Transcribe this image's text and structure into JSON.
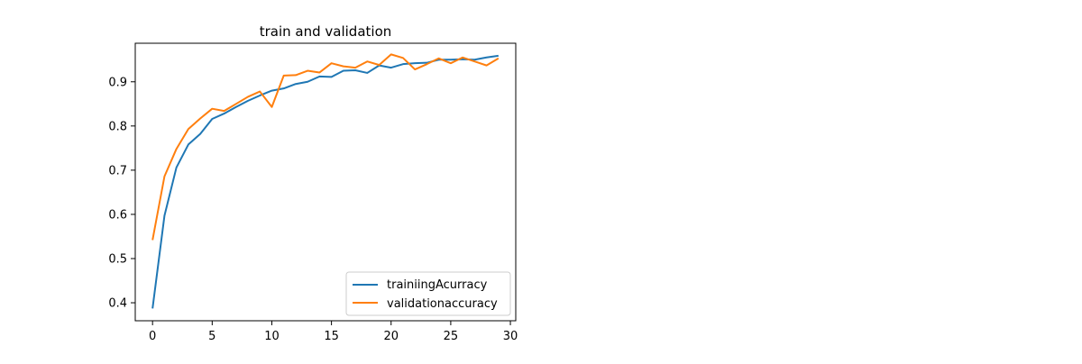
{
  "chart_data": {
    "type": "line",
    "title": "train and validation",
    "xlabel": "",
    "ylabel": "",
    "xlim": [
      -1.45,
      30.45
    ],
    "ylim": [
      0.3593,
      0.9872
    ],
    "xticks": [
      0,
      5,
      10,
      15,
      20,
      25,
      30
    ],
    "yticks": [
      0.4,
      0.5,
      0.6,
      0.7,
      0.8,
      0.9
    ],
    "xtick_labels": [
      "0",
      "5",
      "10",
      "15",
      "20",
      "25",
      "30"
    ],
    "ytick_labels": [
      "0.4",
      "0.5",
      "0.6",
      "0.7",
      "0.8",
      "0.9"
    ],
    "grid": false,
    "legend_position": "lower right",
    "x": [
      0,
      1,
      2,
      3,
      4,
      5,
      6,
      7,
      8,
      9,
      10,
      11,
      12,
      13,
      14,
      15,
      16,
      17,
      18,
      19,
      20,
      21,
      22,
      23,
      24,
      25,
      26,
      27,
      28,
      29
    ],
    "series": [
      {
        "name": "trainiingAcurracy",
        "color": "#1f77b4",
        "values": [
          0.387,
          0.597,
          0.706,
          0.758,
          0.782,
          0.816,
          0.828,
          0.843,
          0.857,
          0.869,
          0.88,
          0.885,
          0.895,
          0.9,
          0.912,
          0.911,
          0.925,
          0.926,
          0.92,
          0.937,
          0.932,
          0.94,
          0.942,
          0.943,
          0.95,
          0.95,
          0.951,
          0.95,
          0.955,
          0.959
        ]
      },
      {
        "name": "validationaccuracy",
        "color": "#ff7f0e",
        "values": [
          0.542,
          0.686,
          0.748,
          0.793,
          0.817,
          0.839,
          0.834,
          0.85,
          0.866,
          0.878,
          0.843,
          0.914,
          0.915,
          0.925,
          0.921,
          0.942,
          0.935,
          0.932,
          0.946,
          0.938,
          0.962,
          0.954,
          0.928,
          0.94,
          0.953,
          0.942,
          0.955,
          0.946,
          0.937,
          0.953
        ]
      }
    ]
  }
}
